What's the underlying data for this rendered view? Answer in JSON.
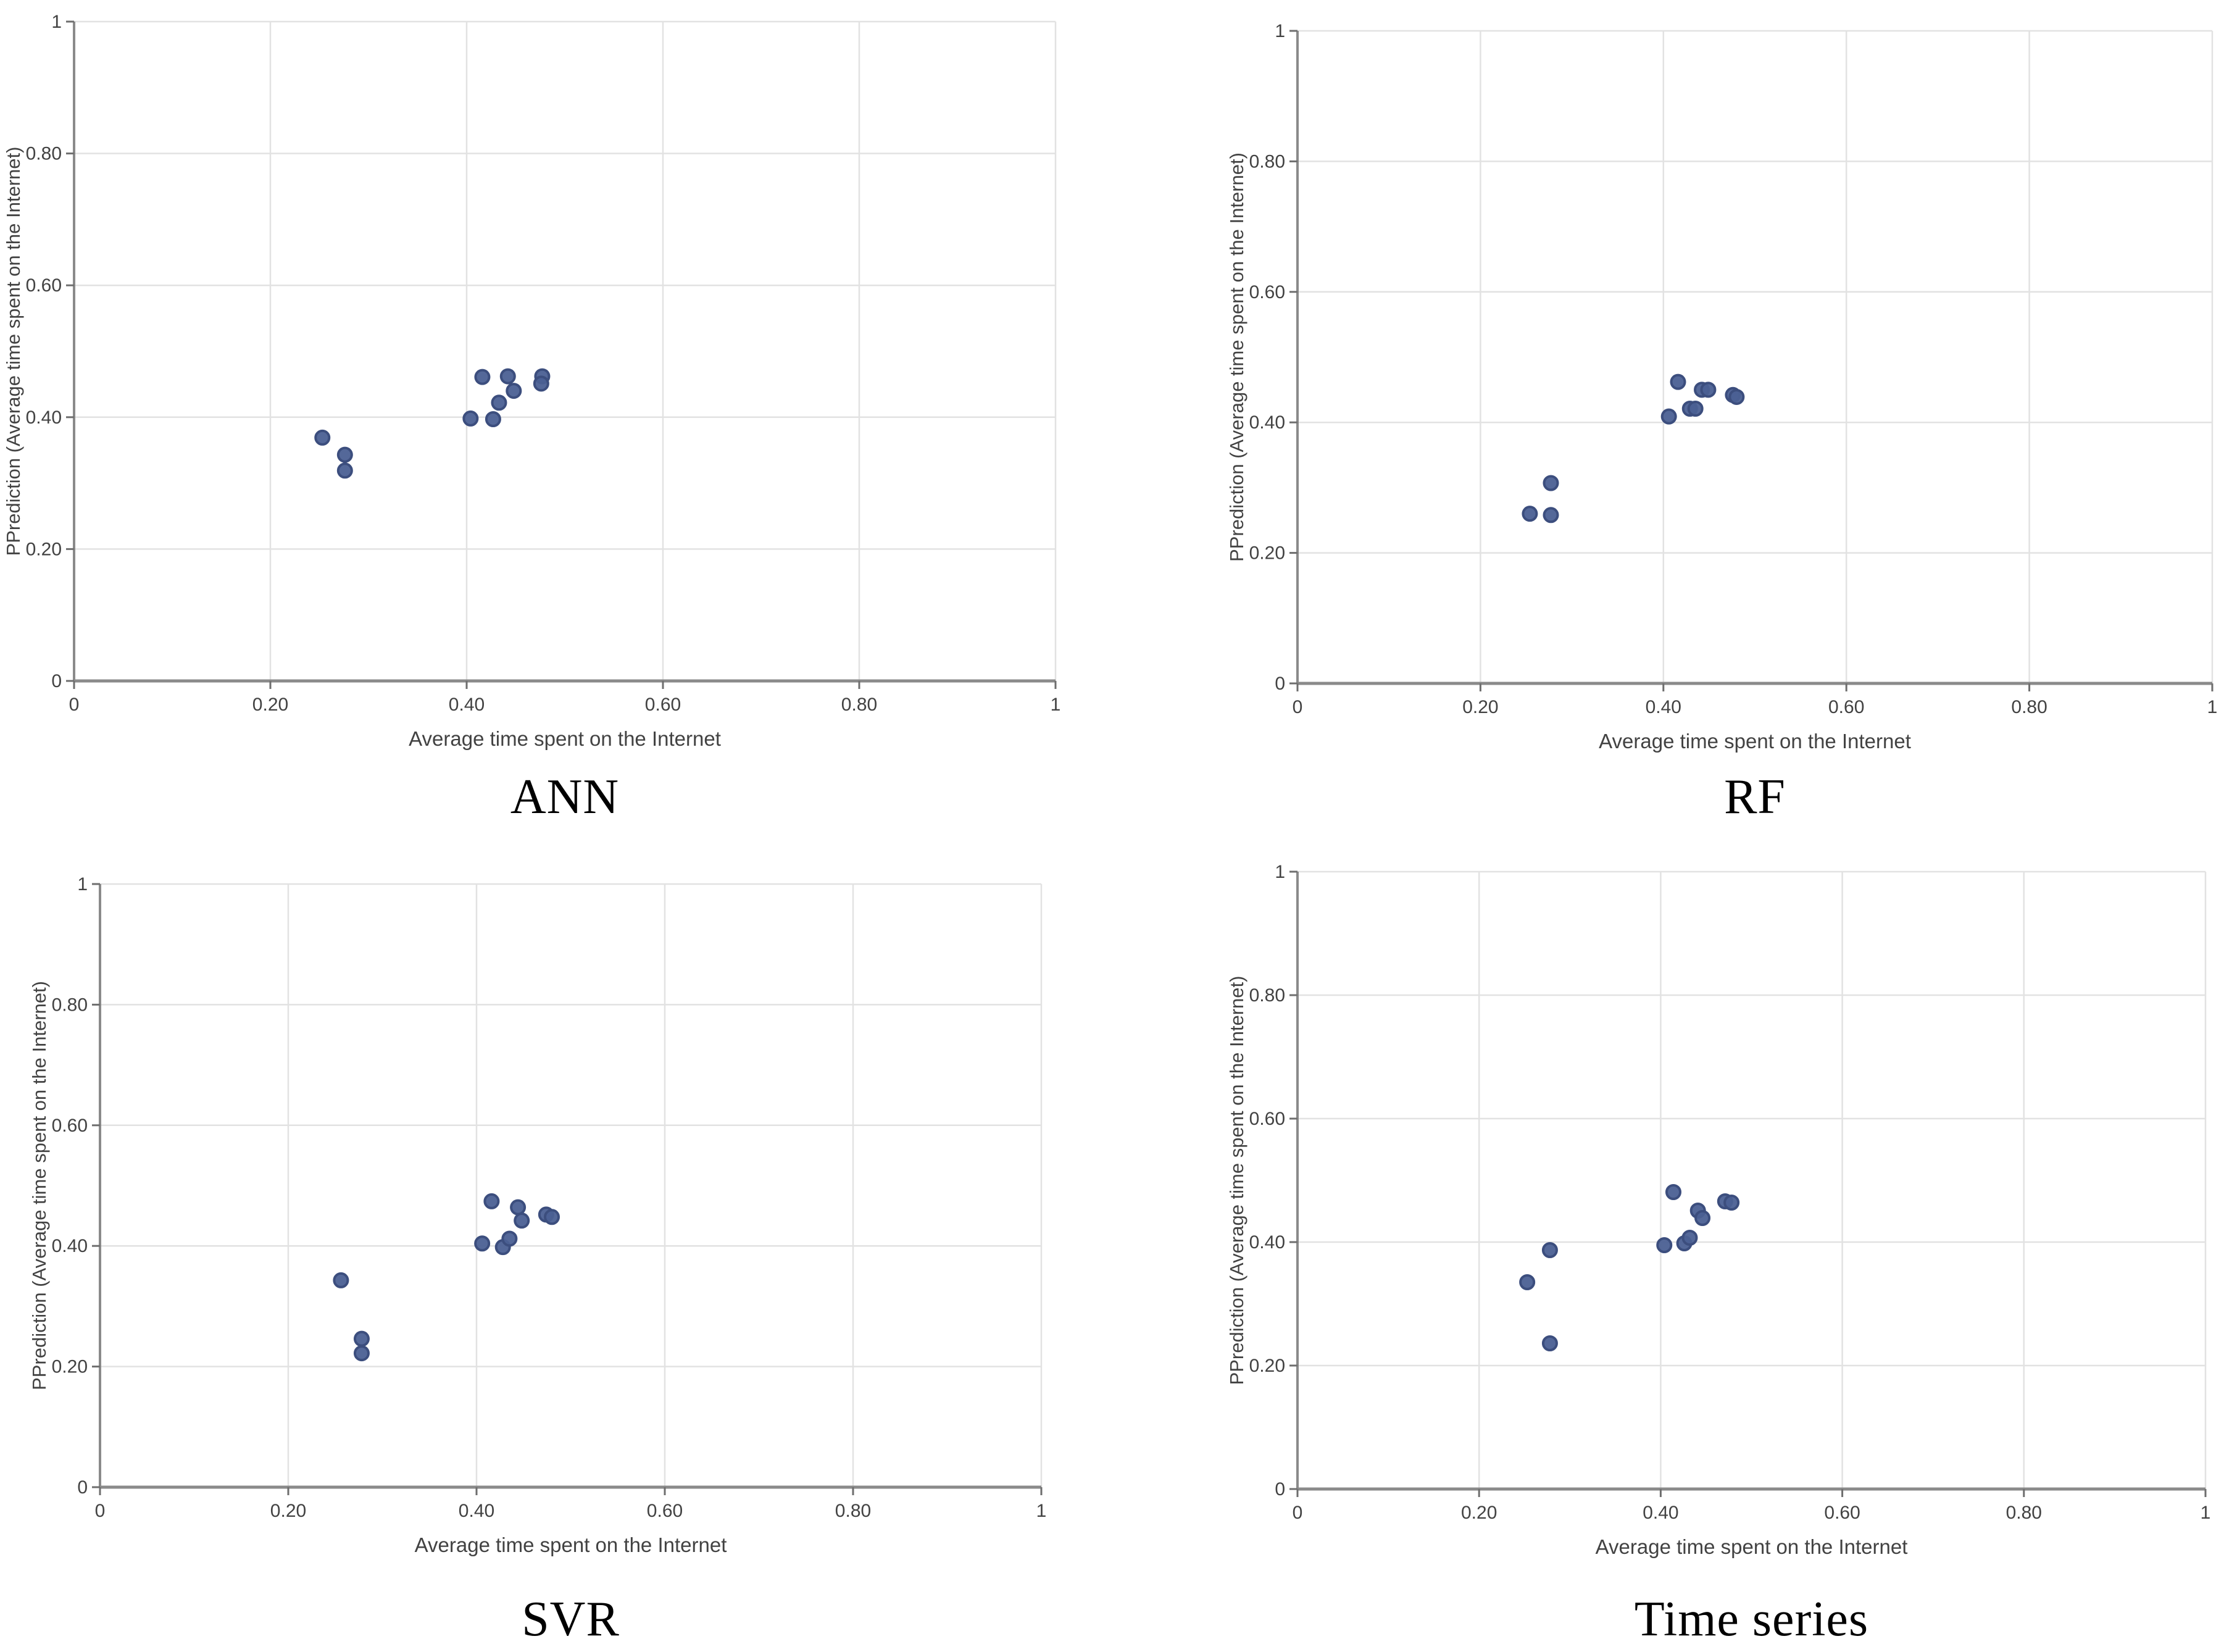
{
  "figure": {
    "description_colors": {
      "marker": "#4b6094",
      "marker_edge": "#3c4e7e",
      "grid": "#e2e2e2",
      "axis": "#8a8a8a",
      "tick": "#6e6e6e",
      "text": "#424242",
      "title": "#000000",
      "background": "#ffffff"
    }
  },
  "chart_data": [
    {
      "id": "ann",
      "type": "scatter",
      "title": "ANN",
      "xlabel": "Average time spent on the Internet",
      "ylabel": "PPrediction (Average time spent on the Internet)",
      "xlim": [
        0,
        1
      ],
      "ylim": [
        0,
        1
      ],
      "grid": true,
      "legend": "none",
      "xticks": {
        "values": [
          0,
          0.2,
          0.4,
          0.6,
          0.8,
          1
        ],
        "labels": [
          "0",
          "0.20",
          "0.40",
          "0.60",
          "0.80",
          "1"
        ]
      },
      "yticks": {
        "values": [
          0,
          0.2,
          0.4,
          0.6,
          0.8,
          1
        ],
        "labels": [
          "0",
          "0.20",
          "0.40",
          "0.60",
          "0.80",
          "1"
        ]
      },
      "points": [
        [
          0.253,
          0.369
        ],
        [
          0.276,
          0.343
        ],
        [
          0.276,
          0.319
        ],
        [
          0.404,
          0.398
        ],
        [
          0.427,
          0.397
        ],
        [
          0.433,
          0.422
        ],
        [
          0.448,
          0.44
        ],
        [
          0.416,
          0.461
        ],
        [
          0.442,
          0.462
        ],
        [
          0.477,
          0.462
        ],
        [
          0.476,
          0.451
        ]
      ]
    },
    {
      "id": "rf",
      "type": "scatter",
      "title": "RF",
      "xlabel": "Average time spent on the Internet",
      "ylabel": "PPrediction (Average time spent on the Internet)",
      "xlim": [
        0,
        1
      ],
      "ylim": [
        0,
        1
      ],
      "grid": true,
      "legend": "none",
      "xticks": {
        "values": [
          0,
          0.2,
          0.4,
          0.6,
          0.8,
          1
        ],
        "labels": [
          "0",
          "0.20",
          "0.40",
          "0.60",
          "0.80",
          "1"
        ]
      },
      "yticks": {
        "values": [
          0,
          0.2,
          0.4,
          0.6,
          0.8,
          1
        ],
        "labels": [
          "0",
          "0.20",
          "0.40",
          "0.60",
          "0.80",
          "1"
        ]
      },
      "points": [
        [
          0.254,
          0.26
        ],
        [
          0.277,
          0.258
        ],
        [
          0.277,
          0.307
        ],
        [
          0.406,
          0.409
        ],
        [
          0.429,
          0.421
        ],
        [
          0.435,
          0.421
        ],
        [
          0.416,
          0.462
        ],
        [
          0.442,
          0.45
        ],
        [
          0.449,
          0.45
        ],
        [
          0.476,
          0.442
        ],
        [
          0.48,
          0.439
        ]
      ]
    },
    {
      "id": "svr",
      "type": "scatter",
      "title": "SVR",
      "xlabel": "Average time spent on the Internet",
      "ylabel": "PPrediction (Average time spent on the Internet)",
      "xlim": [
        0,
        1
      ],
      "ylim": [
        0,
        1
      ],
      "grid": true,
      "legend": "none",
      "xticks": {
        "values": [
          0,
          0.2,
          0.4,
          0.6,
          0.8,
          1
        ],
        "labels": [
          "0",
          "0.20",
          "0.40",
          "0.60",
          "0.80",
          "1"
        ]
      },
      "yticks": {
        "values": [
          0,
          0.2,
          0.4,
          0.6,
          0.8,
          1
        ],
        "labels": [
          "0",
          "0.20",
          "0.40",
          "0.60",
          "0.80",
          "1"
        ]
      },
      "points": [
        [
          0.256,
          0.343
        ],
        [
          0.278,
          0.246
        ],
        [
          0.278,
          0.222
        ],
        [
          0.406,
          0.404
        ],
        [
          0.428,
          0.398
        ],
        [
          0.435,
          0.412
        ],
        [
          0.416,
          0.474
        ],
        [
          0.444,
          0.464
        ],
        [
          0.448,
          0.442
        ],
        [
          0.474,
          0.452
        ],
        [
          0.48,
          0.448
        ]
      ]
    },
    {
      "id": "ts",
      "type": "scatter",
      "title": "Time series",
      "xlabel": "Average time spent on the Internet",
      "ylabel": "PPrediction (Average time spent on the Internet)",
      "xlim": [
        0,
        1
      ],
      "ylim": [
        0,
        1
      ],
      "grid": true,
      "legend": "none",
      "xticks": {
        "values": [
          0,
          0.2,
          0.4,
          0.6,
          0.8,
          1
        ],
        "labels": [
          "0",
          "0.20",
          "0.40",
          "0.60",
          "0.80",
          "1"
        ]
      },
      "yticks": {
        "values": [
          0,
          0.2,
          0.4,
          0.6,
          0.8,
          1
        ],
        "labels": [
          "0",
          "0.20",
          "0.40",
          "0.60",
          "0.80",
          "1"
        ]
      },
      "points": [
        [
          0.253,
          0.335
        ],
        [
          0.278,
          0.387
        ],
        [
          0.278,
          0.236
        ],
        [
          0.404,
          0.395
        ],
        [
          0.426,
          0.398
        ],
        [
          0.432,
          0.407
        ],
        [
          0.414,
          0.481
        ],
        [
          0.441,
          0.451
        ],
        [
          0.446,
          0.439
        ],
        [
          0.471,
          0.466
        ],
        [
          0.478,
          0.464
        ]
      ]
    }
  ]
}
